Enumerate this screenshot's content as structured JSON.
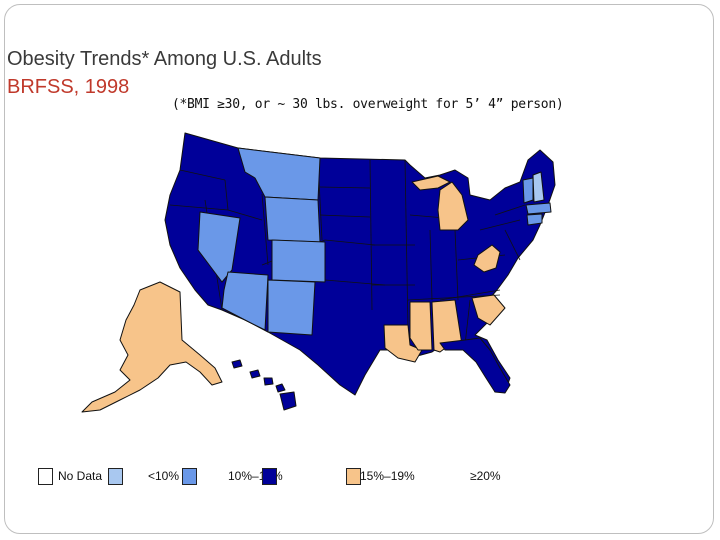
{
  "slide": {
    "title_line1": "Obesity Trends* Among U.S. Adults",
    "title_line2": "BRFSS, 1998",
    "subtitle": "(*BMI ≥30, or ~ 30 lbs. overweight for 5’ 4” person)"
  },
  "legend": {
    "items": [
      {
        "label": "No Data",
        "color": "#ffffff"
      },
      {
        "label": "<10%",
        "color": "#a9c8f0"
      },
      {
        "label": "10%–14%",
        "color": "#6a98e8"
      },
      {
        "label": "15%–19%",
        "color": "#000099"
      },
      {
        "label": "≥20%",
        "color": "#f7c48a"
      }
    ]
  },
  "map_colors": {
    "no_data": "#ffffff",
    "lt10": "#a9c8f0",
    "p10_14": "#6a98e8",
    "p15_19": "#000099",
    "ge20": "#f7c48a",
    "border": "#111111"
  },
  "states": {
    "p10_14": [
      "Montana",
      "Wyoming",
      "Nevada",
      "Colorado",
      "Arizona",
      "New Mexico",
      "Vermont",
      "Massachusetts",
      "Connecticut"
    ],
    "ge20": [
      "Alaska",
      "Michigan",
      "West Virginia",
      "Louisiana",
      "Mississippi",
      "Alabama",
      "South Carolina"
    ],
    "lt10": [
      "New Hampshire"
    ]
  }
}
